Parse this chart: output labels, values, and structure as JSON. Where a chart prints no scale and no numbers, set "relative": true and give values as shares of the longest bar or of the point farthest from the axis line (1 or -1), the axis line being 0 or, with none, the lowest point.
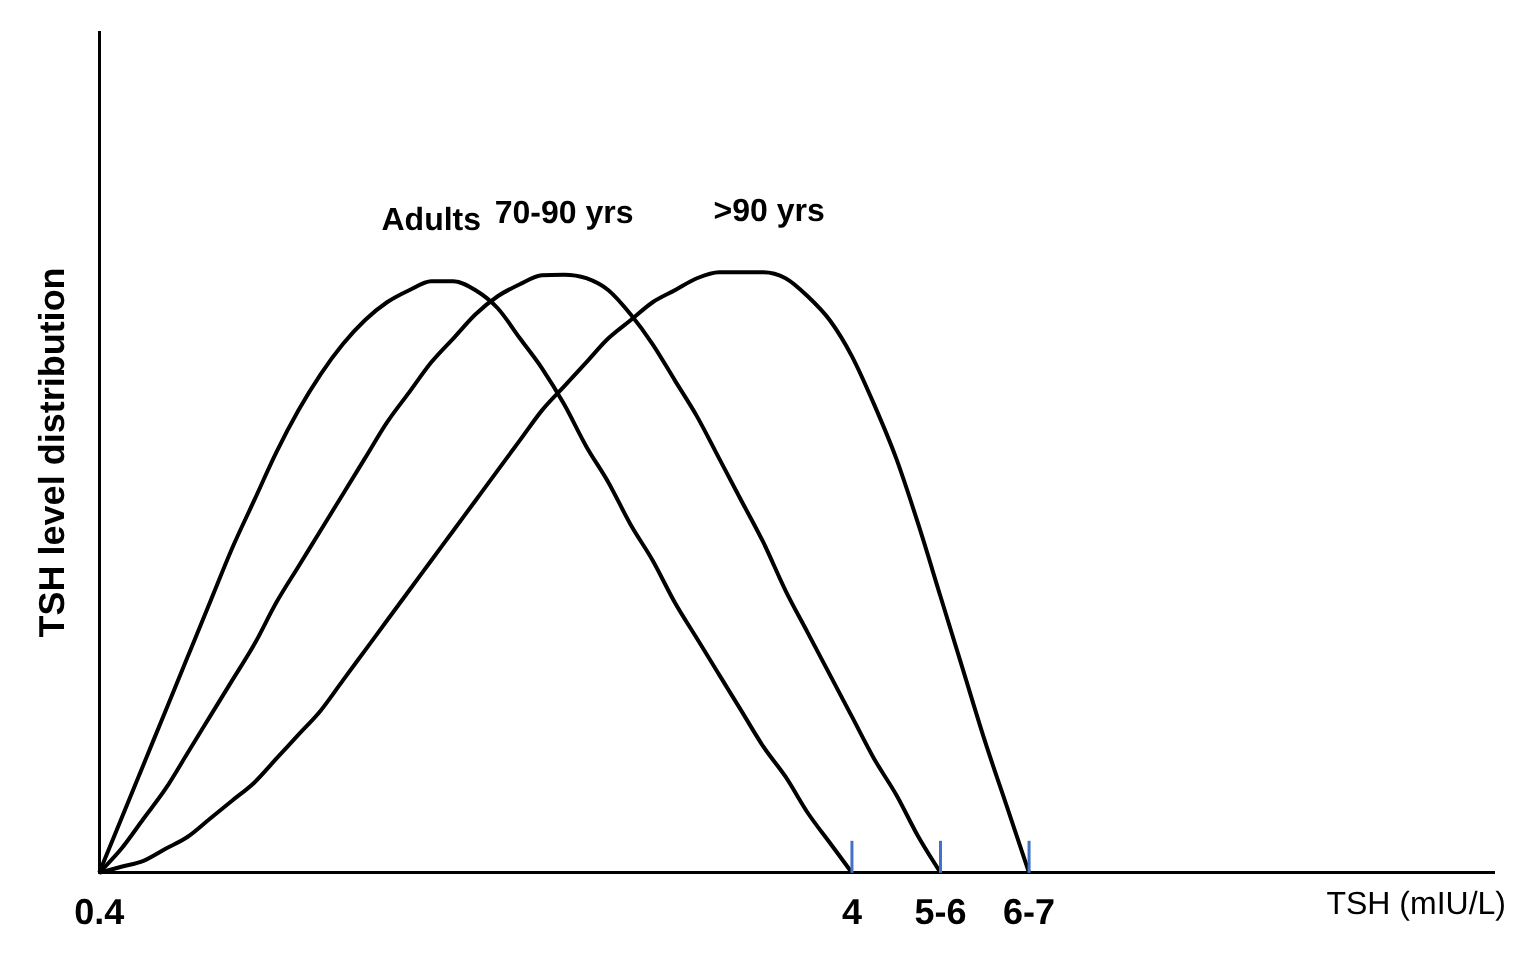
{
  "chart_data": {
    "type": "line",
    "relative": true,
    "xlabel": "TSH (mIU/L)",
    "ylabel": "TSH level distribution",
    "legend": false,
    "grid": false,
    "marker": "none",
    "line_style": "solid",
    "categories": [
      "0.4",
      null,
      null,
      null,
      null,
      null,
      null,
      null,
      null,
      null,
      null,
      null,
      null,
      null,
      null,
      null,
      null,
      null,
      null,
      null,
      null,
      null,
      null,
      null,
      null,
      null,
      null,
      null,
      null,
      null,
      null,
      null,
      null,
      null,
      "4",
      null,
      null,
      null,
      "5-6",
      null,
      null,
      null,
      "6-7",
      null,
      null,
      null,
      null,
      null,
      null,
      null,
      null,
      null,
      null,
      null,
      null,
      null,
      null,
      null,
      null,
      null,
      null,
      null,
      null,
      null
    ],
    "series": [
      {
        "name": "Adults",
        "color": "#000000",
        "values": [
          0,
          0.09,
          0.18,
          0.27,
          0.36,
          0.45,
          0.54,
          0.62,
          0.7,
          0.77,
          0.83,
          0.88,
          0.92,
          0.95,
          0.97,
          0.985,
          0.985,
          0.97,
          0.94,
          0.89,
          0.84,
          0.78,
          0.71,
          0.65,
          0.58,
          0.52,
          0.45,
          0.39,
          0.33,
          0.27,
          0.21,
          0.16,
          0.1,
          0.05,
          0,
          null,
          null,
          null,
          null,
          null,
          null,
          null,
          null,
          null,
          null,
          null,
          null,
          null,
          null,
          null,
          null,
          null,
          null,
          null,
          null,
          null,
          null,
          null,
          null,
          null,
          null,
          null,
          null,
          null
        ]
      },
      {
        "name": "70-90 yrs",
        "color": "#000000",
        "values": [
          0,
          0.04,
          0.09,
          0.14,
          0.2,
          0.26,
          0.32,
          0.38,
          0.45,
          0.51,
          0.57,
          0.63,
          0.69,
          0.75,
          0.8,
          0.85,
          0.89,
          0.93,
          0.96,
          0.98,
          0.995,
          0.996,
          0.99,
          0.97,
          0.93,
          0.88,
          0.82,
          0.76,
          0.69,
          0.62,
          0.55,
          0.47,
          0.4,
          0.33,
          0.26,
          0.19,
          0.13,
          0.06,
          0,
          null,
          null,
          null,
          null,
          null,
          null,
          null,
          null,
          null,
          null,
          null,
          null,
          null,
          null,
          null,
          null,
          null,
          null,
          null,
          null,
          null,
          null,
          null,
          null,
          null
        ]
      },
      {
        "name": ">90 yrs",
        "color": "#000000",
        "values": [
          0,
          0.01,
          0.02,
          0.04,
          0.06,
          0.09,
          0.12,
          0.15,
          0.19,
          0.23,
          0.27,
          0.32,
          0.37,
          0.42,
          0.47,
          0.52,
          0.57,
          0.62,
          0.67,
          0.72,
          0.77,
          0.81,
          0.85,
          0.89,
          0.92,
          0.95,
          0.97,
          0.99,
          1.0,
          1.0,
          1.0,
          0.99,
          0.96,
          0.92,
          0.86,
          0.78,
          0.69,
          0.58,
          0.46,
          0.34,
          0.22,
          0.11,
          0,
          null,
          null,
          null,
          null,
          null,
          null,
          null,
          null,
          null,
          null,
          null,
          null,
          null,
          null,
          null,
          null,
          null,
          null,
          null,
          null,
          null
        ]
      }
    ]
  }
}
